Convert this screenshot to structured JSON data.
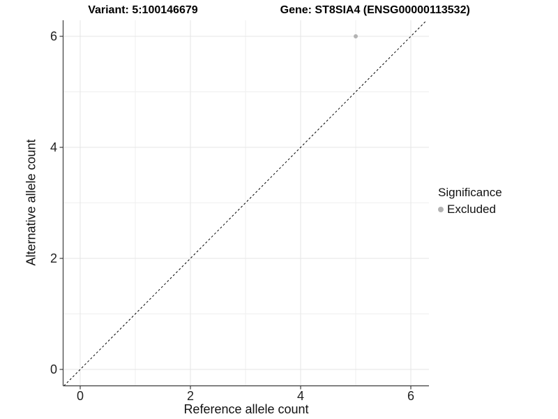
{
  "chart_data": {
    "type": "scatter",
    "title_left": "Variant: 5:100146679",
    "title_right": "Gene: ST8SIA4 (ENSG00000113532)",
    "xlabel": "Reference allele count",
    "ylabel": "Alternative allele count",
    "x_ticks": [
      0,
      2,
      4,
      6
    ],
    "y_ticks": [
      0,
      2,
      4,
      6
    ],
    "xlim": [
      -0.33,
      6.33
    ],
    "ylim": [
      -0.33,
      6.33
    ],
    "grid": {
      "major": [
        0,
        2,
        4,
        6
      ],
      "minor": [
        1,
        3,
        5
      ]
    },
    "points": [
      {
        "x": 5,
        "y": 6,
        "significance": "Excluded"
      }
    ],
    "reference_line": {
      "type": "identity",
      "slope": 1,
      "intercept": 0,
      "style": "dashed",
      "color": "#000000"
    },
    "legend": {
      "title": "Significance",
      "position": "right",
      "items": [
        {
          "label": "Excluded",
          "color": "#b3b3b3",
          "marker": "circle"
        }
      ]
    },
    "colors": {
      "point": "#b3b3b3",
      "grid_major": "#e4e4e4",
      "grid_minor": "#efefef",
      "axis": "#3c3c3c",
      "background": "#ffffff"
    }
  }
}
